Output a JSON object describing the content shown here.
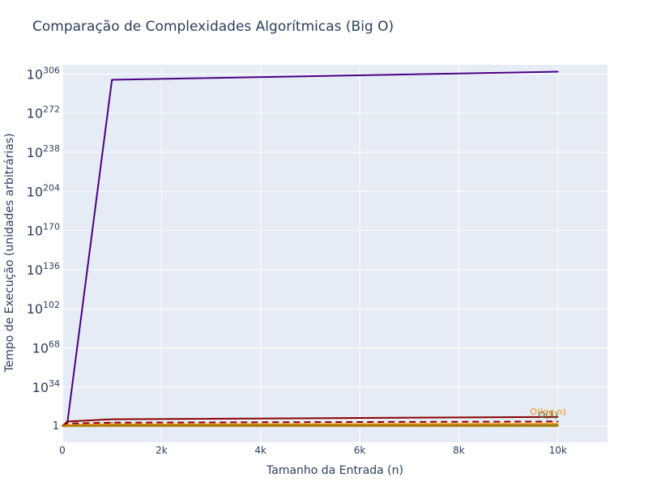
{
  "chart_data": {
    "type": "line",
    "title": "Comparação de Complexidades Algorítmicas (Big O)",
    "xlabel": "Tamanho da Entrada (n)",
    "ylabel": "Tempo de Execução (unidades arbitrárias)",
    "x": [
      1,
      100,
      1000,
      10000
    ],
    "xlim": [
      0,
      11000
    ],
    "x_ticks": [
      0,
      2000,
      4000,
      6000,
      8000,
      10000
    ],
    "x_tick_labels": [
      "0",
      "2k",
      "4k",
      "6k",
      "8k",
      "10k"
    ],
    "y_scale": "log",
    "y_exponent_lim": [
      -14,
      314
    ],
    "y_tick_base": "10",
    "y_tick_exponents": [
      34,
      68,
      102,
      136,
      170,
      204,
      238,
      272,
      306
    ],
    "y_tick_bottom": "1",
    "grid": true,
    "plot_background": "#e5ecf6",
    "series": [
      {
        "color": "#4b0082",
        "dash": "solid",
        "y_exponents": [
          0.3,
          2.5,
          301,
          308
        ]
      },
      {
        "color": "#8b0000",
        "dash": "solid",
        "y_exponents": [
          0,
          4.0,
          6.0,
          8.0
        ]
      },
      {
        "color": "#8b0000",
        "dash": "dash",
        "y_exponents": [
          0,
          2.3,
          3.0,
          4.0
        ]
      },
      {
        "color": "#ff8c00",
        "dash": "solid",
        "y_exponents": [
          0,
          1.0,
          1.5,
          2.0
        ]
      },
      {
        "color": "#556b2f",
        "dash": "solid",
        "y_exponents": [
          0,
          0.3,
          0.5,
          0.6
        ]
      },
      {
        "color": "#b8860b",
        "dash": "solid",
        "y_exponents": [
          0,
          0,
          0,
          0
        ]
      }
    ],
    "annotations": [
      {
        "text": "O(log n)",
        "color": "#ff8c00",
        "x": 9800,
        "y_exponent": 10
      },
      {
        "text": "O(1)",
        "color": "#556b2f",
        "x": 9800,
        "y_exponent": 7
      }
    ]
  }
}
